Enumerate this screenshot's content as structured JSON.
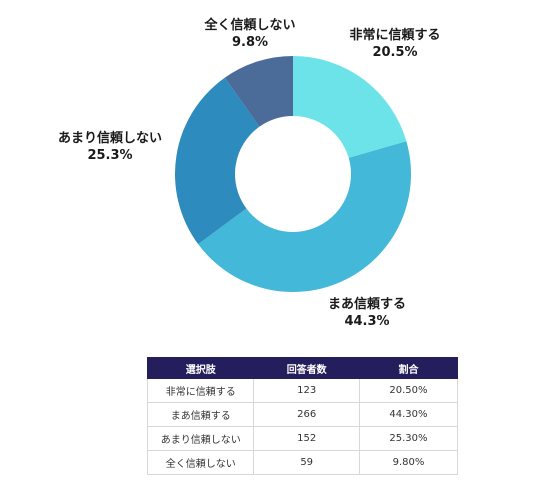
{
  "colors": {
    "slices": [
      "#6ce3e8",
      "#44b8d8",
      "#2d8bbd",
      "#4b6b98"
    ],
    "table_header_bg": "#241f5c",
    "table_header_text": "#ffffff"
  },
  "chart_data": {
    "type": "pie",
    "variant": "donut",
    "start_angle_deg": 0,
    "direction": "clockwise",
    "categories": [
      "非常に信頼する",
      "まあ信頼する",
      "あまり信頼しない",
      "全く信頼しない"
    ],
    "values": [
      20.5,
      44.3,
      25.3,
      9.8
    ],
    "data_labels": [
      "20.5%",
      "44.3%",
      "25.3%",
      "9.8%"
    ],
    "title": "",
    "legend": "none"
  },
  "table": {
    "headers": [
      "選択肢",
      "回答者数",
      "割合"
    ],
    "rows": [
      {
        "label": "非常に信頼する",
        "count": "123",
        "ratio": "20.50%"
      },
      {
        "label": "まあ信頼する",
        "count": "266",
        "ratio": "44.30%"
      },
      {
        "label": "あまり信頼しない",
        "count": "152",
        "ratio": "25.30%"
      },
      {
        "label": "全く信頼しない",
        "count": "59",
        "ratio": "9.80%"
      }
    ]
  }
}
